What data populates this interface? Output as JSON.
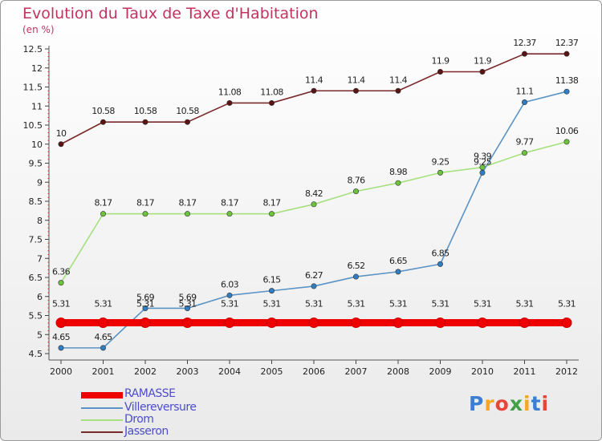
{
  "title": "Evolution du Taux de Taxe d'Habitation",
  "subtitle": "(en %)",
  "logo": {
    "letters": [
      "P",
      "r",
      "o",
      "x",
      "i",
      "t",
      "i"
    ],
    "colors": [
      "#3b7fd4",
      "#f5a623",
      "#e6463a",
      "#43a047",
      "#f5a623",
      "#3b7fd4",
      "#e6463a"
    ]
  },
  "chart_data": {
    "type": "line",
    "title": "Evolution du Taux de Taxe d'Habitation",
    "ylabel": "(en %)",
    "xlabel": "",
    "x": [
      "2000",
      "2001",
      "2002",
      "2003",
      "2004",
      "2005",
      "2006",
      "2007",
      "2008",
      "2009",
      "2010",
      "2011",
      "2012"
    ],
    "ylim": [
      4.5,
      12.5
    ],
    "yticks": [
      "4.5",
      "5",
      "5.5",
      "6",
      "6.5",
      "7",
      "7.5",
      "8",
      "8.5",
      "9",
      "9.5",
      "10",
      "10.5",
      "11",
      "11.5",
      "12",
      "12.5"
    ],
    "grid": false,
    "legend_position": "bottom-left",
    "series": [
      {
        "name": "RAMASSE",
        "color": "#ee0000",
        "thick": true,
        "values": [
          5.31,
          5.31,
          5.31,
          5.31,
          5.31,
          5.31,
          5.31,
          5.31,
          5.31,
          5.31,
          5.31,
          5.31,
          5.31
        ],
        "labels": [
          "5.31",
          "5.31",
          "5.31",
          "5.31",
          "5.31",
          "5.31",
          "5.31",
          "5.31",
          "5.31",
          "5.31",
          "5.31",
          "5.31",
          "5.31"
        ]
      },
      {
        "name": "Villereversure",
        "color": "#5b93c5",
        "marker": "#2f7ec3",
        "values": [
          4.65,
          4.65,
          5.69,
          5.69,
          6.03,
          6.15,
          6.27,
          6.52,
          6.65,
          6.85,
          9.25,
          11.1,
          11.38
        ],
        "labels": [
          "4.65",
          "4.65",
          "5.69",
          "5.69",
          "6.03",
          "6.15",
          "6.27",
          "6.52",
          "6.65",
          "6.85",
          "9.25",
          "11.1",
          "11.38"
        ]
      },
      {
        "name": "Drom",
        "color": "#a6e07e",
        "marker": "#6dc43c",
        "values": [
          6.36,
          8.17,
          8.17,
          8.17,
          8.17,
          8.17,
          8.42,
          8.76,
          8.98,
          9.25,
          9.39,
          9.77,
          10.06
        ],
        "labels": [
          "6.36",
          "8.17",
          "8.17",
          "8.17",
          "8.17",
          "8.17",
          "8.42",
          "8.76",
          "8.98",
          "9.25",
          "9.39",
          "9.77",
          "10.06"
        ]
      },
      {
        "name": "Jasseron",
        "color": "#7a2a2a",
        "marker": "#5a1414",
        "values": [
          10,
          10.58,
          10.58,
          10.58,
          11.08,
          11.08,
          11.4,
          11.4,
          11.4,
          11.9,
          11.9,
          12.37,
          12.37
        ],
        "labels": [
          "10",
          "10.58",
          "10.58",
          "10.58",
          "11.08",
          "11.08",
          "11.4",
          "11.4",
          "11.4",
          "11.9",
          "11.9",
          "12.37",
          "12.37"
        ]
      }
    ]
  }
}
